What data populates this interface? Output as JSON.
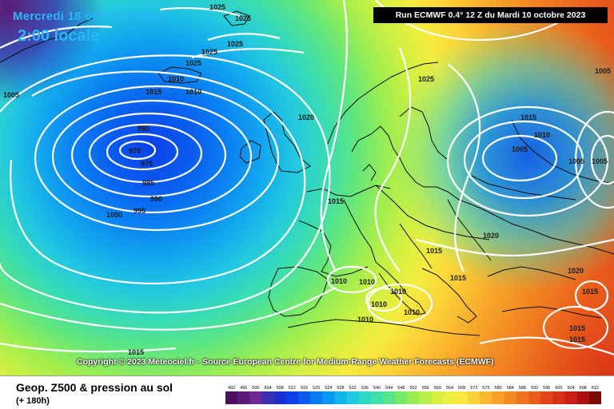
{
  "header": {
    "date": "Mercredi 18 octobre 2023",
    "time": "2:00 locale",
    "run": "Run ECMWF 0.4° 12 Z du Mardi 10 octobre 2023"
  },
  "copyright": "Copyright © 2023 Meteociel.fr - Source European Centre for Medium-Range Weather Forecasts (ECMWF)",
  "footer": {
    "title": "Geop. Z500 & pression au sol",
    "subtitle": "(+ 180h)"
  },
  "legend": {
    "values": [
      "492",
      "496",
      "500",
      "504",
      "508",
      "512",
      "516",
      "520",
      "524",
      "528",
      "532",
      "536",
      "540",
      "544",
      "548",
      "552",
      "556",
      "560",
      "564",
      "568",
      "572",
      "576",
      "580",
      "584",
      "588",
      "592",
      "596",
      "600",
      "604",
      "608",
      "612"
    ],
    "colors": [
      "#4a1060",
      "#5c1a78",
      "#6e2a92",
      "#3a2fb0",
      "#1a2fd0",
      "#0a40e8",
      "#0a5cf0",
      "#0a7cf2",
      "#0a98f0",
      "#10b4ec",
      "#20c8e2",
      "#30d8c8",
      "#40e0a8",
      "#58e488",
      "#78e868",
      "#98ee50",
      "#b8f048",
      "#d8f040",
      "#eef040",
      "#f8e840",
      "#fcd038",
      "#fcb830",
      "#f8a028",
      "#f48a24",
      "#f07420",
      "#ea5c1c",
      "#e24418",
      "#d83016",
      "#c81e14",
      "#b01010",
      "#7a0a0a"
    ]
  },
  "isobars": {
    "low_centers": [
      "970",
      "975",
      "980",
      "985",
      "990",
      "995",
      "1000",
      "1005"
    ],
    "labels": [
      "1025",
      "1025",
      "1025",
      "1025",
      "1025",
      "1025",
      "1025",
      "1015",
      "1010",
      "1010",
      "1005",
      "1020",
      "1015",
      "1010",
      "1005",
      "1005",
      "1005",
      "1025",
      "1020",
      "1015",
      "1015",
      "1010",
      "1010",
      "1010",
      "1010",
      "1010",
      "1015",
      "1015",
      "1015",
      "1015",
      "1020",
      "1010",
      "1015"
    ]
  }
}
